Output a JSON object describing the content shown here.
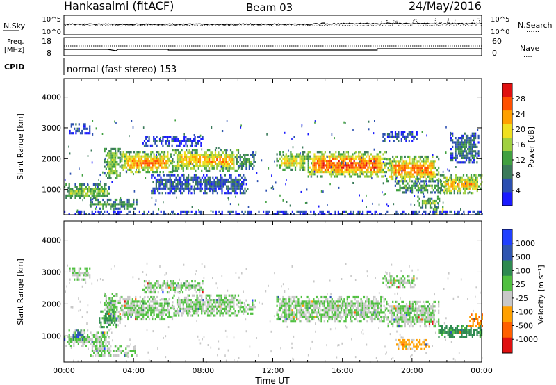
{
  "header": {
    "station": "Hankasalmi (fitACF)",
    "beam": "Beam 03",
    "date": "24/May/2016"
  },
  "noise_panel": {
    "left_label": "N.Sky",
    "right_label": "N.Search",
    "right_dots": "......",
    "left_ticks": [
      "10^5",
      "10^0"
    ],
    "right_ticks": [
      "10^5",
      "10^0"
    ]
  },
  "freq_panel": {
    "left_label_1": "Freq.",
    "left_label_2": "[MHz]",
    "right_label": "Nave",
    "right_dots": "....",
    "left_ticks": [
      "18",
      "8"
    ],
    "right_ticks": [
      "60",
      "0"
    ]
  },
  "cpid": {
    "label": "CPID",
    "text": "normal (fast stereo) 153"
  },
  "x_axis": {
    "label": "Time UT",
    "ticks": [
      "00:00",
      "04:00",
      "08:00",
      "12:00",
      "16:00",
      "20:00",
      "00:00"
    ]
  },
  "colors": {
    "power": [
      "#1a1aff",
      "#2b4fb0",
      "#3a7a5a",
      "#40a040",
      "#a0d040",
      "#f0e020",
      "#ffa000",
      "#ff5000",
      "#e01010"
    ],
    "velocity": [
      "#2040ff",
      "#2f55b0",
      "#2e8a50",
      "#50c040",
      "#c8c8c8",
      "#ffa000",
      "#ff6000",
      "#e01010"
    ]
  },
  "chart_data": [
    {
      "type": "heatmap",
      "name": "power",
      "ylabel": "Slant Range [km]",
      "yticks": [
        "4000",
        "3000",
        "2000",
        "1000"
      ],
      "colorbar_label": "Power [dB]",
      "colorbar_ticks": [
        "28",
        "24",
        "20",
        "16",
        "12",
        "8",
        "4"
      ],
      "x_range_hours": [
        0,
        24
      ],
      "y_range_km": [
        180,
        4600
      ],
      "bands": [
        {
          "t0": 0,
          "t1": 2.6,
          "r0": 700,
          "r1": 1200,
          "level": 0.55
        },
        {
          "t0": 0.3,
          "t1": 1.5,
          "r0": 2800,
          "r1": 3150,
          "level": 0.15
        },
        {
          "t0": 2.3,
          "t1": 3.2,
          "r0": 1400,
          "r1": 2350,
          "level": 0.6
        },
        {
          "t0": 3.2,
          "t1": 6.2,
          "r0": 1550,
          "r1": 2250,
          "level": 0.8
        },
        {
          "t0": 6.2,
          "t1": 10.0,
          "r0": 1650,
          "r1": 2300,
          "level": 0.75
        },
        {
          "t0": 10.0,
          "t1": 11.0,
          "r0": 1700,
          "r1": 2150,
          "level": 0.45
        },
        {
          "t0": 4.5,
          "t1": 8.0,
          "r0": 2400,
          "r1": 2750,
          "level": 0.15
        },
        {
          "t0": 1.5,
          "t1": 4.2,
          "r0": 400,
          "r1": 700,
          "level": 0.5
        },
        {
          "t0": 5.0,
          "t1": 10.5,
          "r0": 900,
          "r1": 1500,
          "level": 0.2
        },
        {
          "t0": 12.2,
          "t1": 14.0,
          "r0": 1650,
          "r1": 2250,
          "level": 0.7
        },
        {
          "t0": 14.0,
          "t1": 18.5,
          "r0": 1450,
          "r1": 2250,
          "level": 0.85
        },
        {
          "t0": 18.5,
          "t1": 21.5,
          "r0": 1300,
          "r1": 2100,
          "level": 0.8
        },
        {
          "t0": 18.3,
          "t1": 20.3,
          "r0": 2550,
          "r1": 2900,
          "level": 0.2
        },
        {
          "t0": 19.0,
          "t1": 22.0,
          "r0": 900,
          "r1": 1300,
          "level": 0.45
        },
        {
          "t0": 20.3,
          "t1": 21.6,
          "r0": 400,
          "r1": 800,
          "level": 0.55
        },
        {
          "t0": 21.2,
          "t1": 21.8,
          "r0": 180,
          "r1": 450,
          "level": 0.9
        },
        {
          "t0": 21.6,
          "t1": 24.0,
          "r0": 900,
          "r1": 1500,
          "level": 0.75
        },
        {
          "t0": 22.2,
          "t1": 23.8,
          "r0": 1900,
          "r1": 2850,
          "level": 0.25
        },
        {
          "t0": 0,
          "t1": 24.0,
          "r0": 180,
          "r1": 320,
          "level": 0.15
        }
      ]
    },
    {
      "type": "heatmap",
      "name": "velocity",
      "ylabel": "Slant Range [km]",
      "yticks": [
        "4000",
        "3000",
        "2000",
        "1000"
      ],
      "colorbar_label": "Velocity [m s⁻¹]",
      "colorbar_ticks": [
        "1000",
        "500",
        "100",
        "25",
        "-25",
        "-100",
        "-500",
        "-1000"
      ],
      "x_range_hours": [
        0,
        24
      ],
      "y_range_km": [
        180,
        4600
      ],
      "bands": [
        {
          "t0": 0,
          "t1": 2.6,
          "r0": 700,
          "r1": 1200,
          "level": 0.5
        },
        {
          "t0": 0.3,
          "t1": 1.5,
          "r0": 2800,
          "r1": 3150,
          "level": 0.5
        },
        {
          "t0": 2.3,
          "t1": 3.2,
          "r0": 1400,
          "r1": 2350,
          "level": 0.5
        },
        {
          "t0": 3.2,
          "t1": 6.2,
          "r0": 1550,
          "r1": 2250,
          "level": 0.5
        },
        {
          "t0": 6.2,
          "t1": 10.0,
          "r0": 1650,
          "r1": 2300,
          "level": 0.5
        },
        {
          "t0": 10.0,
          "t1": 11.0,
          "r0": 1700,
          "r1": 2150,
          "level": 0.5
        },
        {
          "t0": 4.5,
          "t1": 8.0,
          "r0": 2400,
          "r1": 2750,
          "level": 0.5
        },
        {
          "t0": 1.5,
          "t1": 4.2,
          "r0": 400,
          "r1": 700,
          "level": 0.5
        },
        {
          "t0": 12.2,
          "t1": 18.5,
          "r0": 1450,
          "r1": 2250,
          "level": 0.5
        },
        {
          "t0": 18.5,
          "t1": 21.5,
          "r0": 1300,
          "r1": 2100,
          "level": 0.5
        },
        {
          "t0": 18.3,
          "t1": 20.3,
          "r0": 2550,
          "r1": 2900,
          "level": 0.5
        },
        {
          "t0": 2.0,
          "t1": 3.0,
          "r0": 1300,
          "r1": 1800,
          "level": 0.3
        },
        {
          "t0": 0.5,
          "t1": 1.2,
          "r0": 900,
          "r1": 1200,
          "level": 0.2
        },
        {
          "t0": 21.5,
          "t1": 24.0,
          "r0": 1000,
          "r1": 1350,
          "level": 0.3
        },
        {
          "t0": 23.2,
          "t1": 24.0,
          "r0": 1300,
          "r1": 1700,
          "level": 0.75
        },
        {
          "t0": 19.0,
          "t1": 21.0,
          "r0": 600,
          "r1": 900,
          "level": 0.7
        }
      ]
    }
  ]
}
